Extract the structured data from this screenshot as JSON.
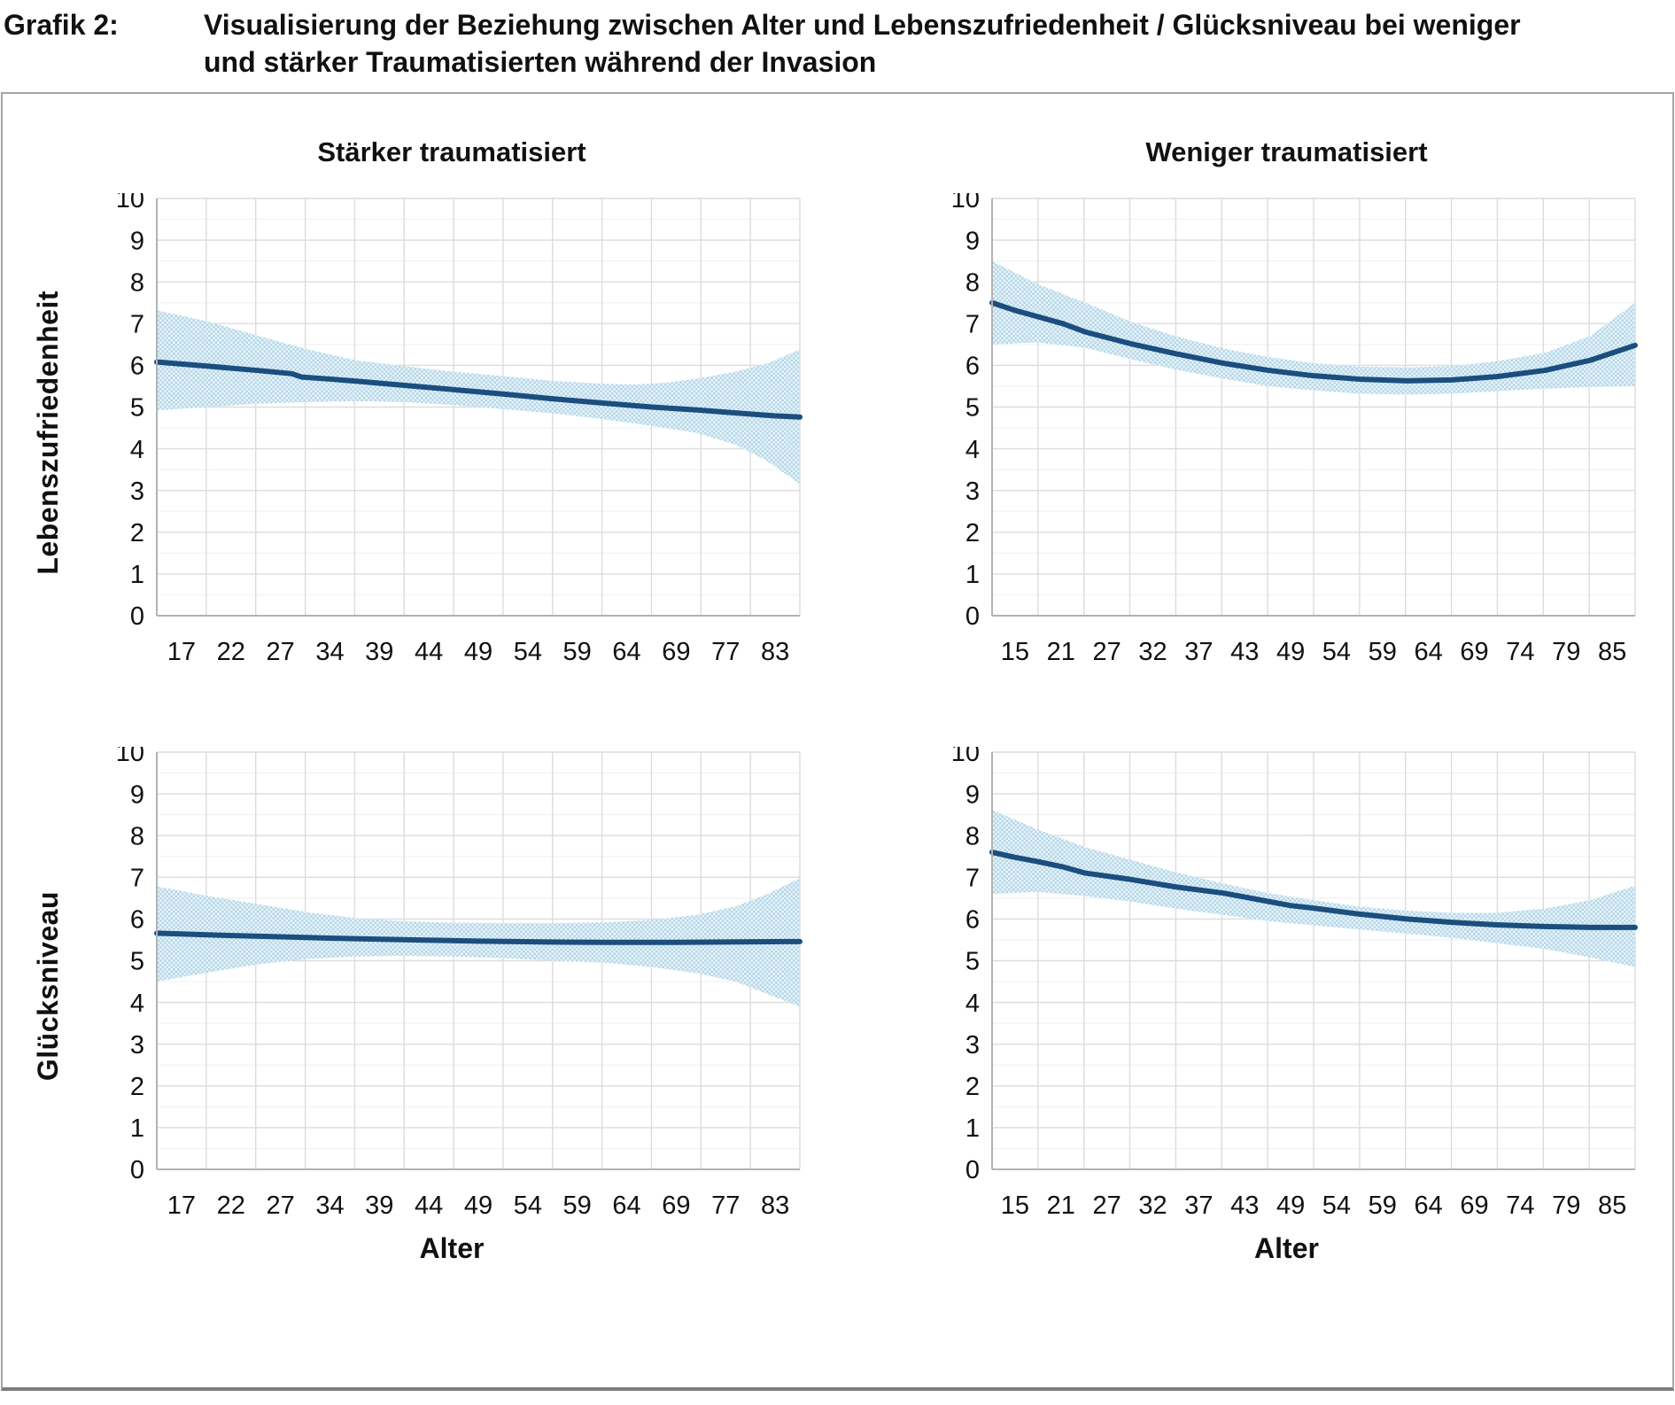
{
  "header": {
    "label": "Grafik 2:",
    "title_line1": "Visualisierung der Beziehung zwischen Alter und Lebenszufriedenheit / Glücksniveau bei weniger",
    "title_line2": "und stärker Traumatisierten während der Invasion"
  },
  "colors": {
    "line": "#1b4e7e",
    "band_dot": "#b5d7e8",
    "band_bg": "#e8f3f9",
    "grid_major": "#dcdcdc",
    "grid_minor": "#f2f2f2",
    "axis": "#b3b3b3",
    "text": "#111111",
    "frame_border": "#a6a6a6"
  },
  "chart_data": [
    {
      "type": "line",
      "title": "Stärker traumatisiert",
      "ylabel": "Lebenszufriedenheit",
      "xlabel": "",
      "ylim": [
        0,
        10
      ],
      "ytick_step": 1,
      "grid": "major+minor",
      "legend": "none",
      "x_units": "axis_fraction",
      "categories": [
        "17",
        "22",
        "27",
        "34",
        "39",
        "44",
        "49",
        "54",
        "59",
        "64",
        "69",
        "77",
        "83"
      ],
      "series": [
        {
          "name": "mean",
          "points": [
            [
              0,
              6.08
            ],
            [
              0.08,
              5.98
            ],
            [
              0.155,
              5.88
            ],
            [
              0.21,
              5.8
            ],
            [
              0.225,
              5.72
            ],
            [
              0.27,
              5.67
            ],
            [
              0.31,
              5.62
            ],
            [
              0.385,
              5.52
            ],
            [
              0.46,
              5.42
            ],
            [
              0.54,
              5.31
            ],
            [
              0.615,
              5.2
            ],
            [
              0.69,
              5.1
            ],
            [
              0.77,
              5.0
            ],
            [
              0.84,
              4.93
            ],
            [
              0.9,
              4.86
            ],
            [
              0.96,
              4.79
            ],
            [
              1,
              4.76
            ]
          ]
        },
        {
          "name": "ci_upper",
          "points": [
            [
              0,
              7.32
            ],
            [
              0.08,
              7.05
            ],
            [
              0.155,
              6.72
            ],
            [
              0.23,
              6.4
            ],
            [
              0.31,
              6.12
            ],
            [
              0.385,
              5.98
            ],
            [
              0.46,
              5.85
            ],
            [
              0.54,
              5.74
            ],
            [
              0.615,
              5.63
            ],
            [
              0.69,
              5.56
            ],
            [
              0.74,
              5.54
            ],
            [
              0.79,
              5.58
            ],
            [
              0.84,
              5.68
            ],
            [
              0.9,
              5.85
            ],
            [
              0.95,
              6.05
            ],
            [
              1,
              6.38
            ]
          ]
        },
        {
          "name": "ci_lower",
          "points": [
            [
              0,
              4.92
            ],
            [
              0.08,
              5.0
            ],
            [
              0.155,
              5.08
            ],
            [
              0.23,
              5.12
            ],
            [
              0.31,
              5.14
            ],
            [
              0.385,
              5.12
            ],
            [
              0.46,
              5.05
            ],
            [
              0.54,
              4.95
            ],
            [
              0.615,
              4.85
            ],
            [
              0.69,
              4.72
            ],
            [
              0.77,
              4.55
            ],
            [
              0.84,
              4.38
            ],
            [
              0.9,
              4.1
            ],
            [
              0.95,
              3.7
            ],
            [
              1,
              3.15
            ]
          ]
        }
      ]
    },
    {
      "type": "line",
      "title": "Weniger traumatisiert",
      "ylabel": "",
      "xlabel": "",
      "ylim": [
        0,
        10
      ],
      "ytick_step": 1,
      "grid": "major+minor",
      "legend": "none",
      "x_units": "axis_fraction",
      "categories": [
        "15",
        "21",
        "27",
        "32",
        "37",
        "43",
        "49",
        "54",
        "59",
        "64",
        "69",
        "74",
        "79",
        "85"
      ],
      "series": [
        {
          "name": "mean",
          "points": [
            [
              0,
              7.5
            ],
            [
              0.035,
              7.32
            ],
            [
              0.07,
              7.17
            ],
            [
              0.11,
              7.0
            ],
            [
              0.145,
              6.8
            ],
            [
              0.215,
              6.52
            ],
            [
              0.285,
              6.28
            ],
            [
              0.36,
              6.05
            ],
            [
              0.43,
              5.88
            ],
            [
              0.5,
              5.75
            ],
            [
              0.57,
              5.67
            ],
            [
              0.645,
              5.63
            ],
            [
              0.715,
              5.65
            ],
            [
              0.785,
              5.73
            ],
            [
              0.86,
              5.88
            ],
            [
              0.93,
              6.12
            ],
            [
              1,
              6.48
            ]
          ]
        },
        {
          "name": "ci_upper",
          "points": [
            [
              0,
              8.5
            ],
            [
              0.07,
              7.95
            ],
            [
              0.145,
              7.5
            ],
            [
              0.215,
              7.05
            ],
            [
              0.285,
              6.7
            ],
            [
              0.36,
              6.4
            ],
            [
              0.43,
              6.2
            ],
            [
              0.5,
              6.05
            ],
            [
              0.57,
              5.97
            ],
            [
              0.645,
              5.95
            ],
            [
              0.715,
              5.98
            ],
            [
              0.785,
              6.1
            ],
            [
              0.86,
              6.3
            ],
            [
              0.93,
              6.7
            ],
            [
              1,
              7.5
            ]
          ]
        },
        {
          "name": "ci_lower",
          "points": [
            [
              0,
              6.5
            ],
            [
              0.07,
              6.55
            ],
            [
              0.145,
              6.42
            ],
            [
              0.215,
              6.15
            ],
            [
              0.285,
              5.9
            ],
            [
              0.36,
              5.68
            ],
            [
              0.43,
              5.5
            ],
            [
              0.5,
              5.4
            ],
            [
              0.57,
              5.32
            ],
            [
              0.645,
              5.3
            ],
            [
              0.715,
              5.32
            ],
            [
              0.785,
              5.38
            ],
            [
              0.86,
              5.44
            ],
            [
              0.93,
              5.48
            ],
            [
              1,
              5.5
            ]
          ]
        }
      ]
    },
    {
      "type": "line",
      "title": "",
      "ylabel": "Glücksniveau",
      "xlabel": "Alter",
      "ylim": [
        0,
        10
      ],
      "ytick_step": 1,
      "grid": "major+minor",
      "legend": "none",
      "x_units": "axis_fraction",
      "categories": [
        "17",
        "22",
        "27",
        "34",
        "39",
        "44",
        "49",
        "54",
        "59",
        "64",
        "69",
        "77",
        "83"
      ],
      "series": [
        {
          "name": "mean",
          "points": [
            [
              0,
              5.66
            ],
            [
              0.1,
              5.61
            ],
            [
              0.2,
              5.57
            ],
            [
              0.3,
              5.53
            ],
            [
              0.4,
              5.5
            ],
            [
              0.5,
              5.47
            ],
            [
              0.6,
              5.45
            ],
            [
              0.7,
              5.44
            ],
            [
              0.8,
              5.44
            ],
            [
              0.9,
              5.45
            ],
            [
              1,
              5.46
            ]
          ]
        },
        {
          "name": "ci_upper",
          "points": [
            [
              0,
              6.78
            ],
            [
              0.08,
              6.55
            ],
            [
              0.16,
              6.35
            ],
            [
              0.24,
              6.15
            ],
            [
              0.31,
              6.02
            ],
            [
              0.38,
              5.95
            ],
            [
              0.46,
              5.91
            ],
            [
              0.54,
              5.9
            ],
            [
              0.62,
              5.9
            ],
            [
              0.7,
              5.92
            ],
            [
              0.77,
              5.98
            ],
            [
              0.84,
              6.1
            ],
            [
              0.9,
              6.3
            ],
            [
              0.95,
              6.6
            ],
            [
              1,
              6.98
            ]
          ]
        },
        {
          "name": "ci_lower",
          "points": [
            [
              0,
              4.5
            ],
            [
              0.08,
              4.72
            ],
            [
              0.16,
              4.92
            ],
            [
              0.24,
              5.05
            ],
            [
              0.31,
              5.1
            ],
            [
              0.38,
              5.12
            ],
            [
              0.46,
              5.1
            ],
            [
              0.54,
              5.06
            ],
            [
              0.62,
              5.0
            ],
            [
              0.7,
              4.95
            ],
            [
              0.77,
              4.85
            ],
            [
              0.84,
              4.7
            ],
            [
              0.9,
              4.5
            ],
            [
              0.95,
              4.2
            ],
            [
              1,
              3.9
            ]
          ]
        }
      ]
    },
    {
      "type": "line",
      "title": "",
      "ylabel": "",
      "xlabel": "Alter",
      "ylim": [
        0,
        10
      ],
      "ytick_step": 1,
      "grid": "major+minor",
      "legend": "none",
      "x_units": "axis_fraction",
      "categories": [
        "15",
        "21",
        "27",
        "32",
        "37",
        "43",
        "49",
        "54",
        "59",
        "64",
        "69",
        "74",
        "79",
        "85"
      ],
      "series": [
        {
          "name": "mean",
          "points": [
            [
              0,
              7.6
            ],
            [
              0.035,
              7.48
            ],
            [
              0.07,
              7.38
            ],
            [
              0.11,
              7.25
            ],
            [
              0.145,
              7.1
            ],
            [
              0.215,
              6.95
            ],
            [
              0.285,
              6.77
            ],
            [
              0.36,
              6.62
            ],
            [
              0.43,
              6.42
            ],
            [
              0.465,
              6.32
            ],
            [
              0.5,
              6.26
            ],
            [
              0.57,
              6.12
            ],
            [
              0.645,
              6.0
            ],
            [
              0.715,
              5.92
            ],
            [
              0.785,
              5.86
            ],
            [
              0.86,
              5.82
            ],
            [
              0.93,
              5.8
            ],
            [
              1,
              5.8
            ]
          ]
        },
        {
          "name": "ci_upper",
          "points": [
            [
              0,
              8.62
            ],
            [
              0.07,
              8.15
            ],
            [
              0.145,
              7.72
            ],
            [
              0.215,
              7.42
            ],
            [
              0.285,
              7.12
            ],
            [
              0.36,
              6.85
            ],
            [
              0.43,
              6.62
            ],
            [
              0.5,
              6.45
            ],
            [
              0.57,
              6.3
            ],
            [
              0.645,
              6.2
            ],
            [
              0.715,
              6.15
            ],
            [
              0.785,
              6.15
            ],
            [
              0.86,
              6.25
            ],
            [
              0.93,
              6.45
            ],
            [
              1,
              6.8
            ]
          ]
        },
        {
          "name": "ci_lower",
          "points": [
            [
              0,
              6.6
            ],
            [
              0.07,
              6.65
            ],
            [
              0.145,
              6.55
            ],
            [
              0.215,
              6.42
            ],
            [
              0.285,
              6.25
            ],
            [
              0.36,
              6.1
            ],
            [
              0.43,
              5.95
            ],
            [
              0.5,
              5.85
            ],
            [
              0.57,
              5.75
            ],
            [
              0.645,
              5.65
            ],
            [
              0.715,
              5.55
            ],
            [
              0.785,
              5.42
            ],
            [
              0.86,
              5.28
            ],
            [
              0.93,
              5.08
            ],
            [
              1,
              4.85
            ]
          ]
        }
      ]
    }
  ]
}
